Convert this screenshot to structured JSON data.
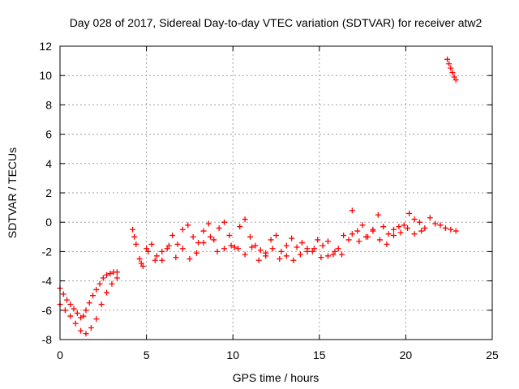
{
  "chart_data": {
    "type": "scatter",
    "title": "Day 028 of 2017, Sidereal Day-to-day VTEC variation (SDTVAR) for receiver atw2",
    "xlabel": "GPS time / hours",
    "ylabel": "SDTVAR / TECUs",
    "xlim": [
      0,
      25
    ],
    "ylim": [
      -8,
      12
    ],
    "xticks": [
      0,
      5,
      10,
      15,
      20,
      25
    ],
    "yticks": [
      -8,
      -6,
      -4,
      -2,
      0,
      2,
      4,
      6,
      8,
      10,
      12
    ],
    "grid": true,
    "marker": "+",
    "color": "#ff0000",
    "series": [
      {
        "name": "SDTVAR",
        "x": [
          0.0,
          0.2,
          0.4,
          0.6,
          0.8,
          1.0,
          1.2,
          1.35,
          1.5,
          1.7,
          1.9,
          2.1,
          2.3,
          2.5,
          2.7,
          2.9,
          3.1,
          3.3,
          0.0,
          0.3,
          0.6,
          0.9,
          1.2,
          1.5,
          1.8,
          2.1,
          2.4,
          2.7,
          3.0,
          3.3,
          4.2,
          4.4,
          4.6,
          4.8,
          5.0,
          5.3,
          5.6,
          5.9,
          6.2,
          6.5,
          6.8,
          7.1,
          7.4,
          7.7,
          8.0,
          8.3,
          8.6,
          8.9,
          9.2,
          9.5,
          9.8,
          10.1,
          10.4,
          10.7,
          11.0,
          11.3,
          11.6,
          11.9,
          12.2,
          12.5,
          12.8,
          13.1,
          13.4,
          13.7,
          14.0,
          14.3,
          14.6,
          14.9,
          15.2,
          15.5,
          15.8,
          16.1,
          16.4,
          16.7,
          4.3,
          4.7,
          5.1,
          5.5,
          5.9,
          6.3,
          6.7,
          7.1,
          7.5,
          7.9,
          8.3,
          8.7,
          9.1,
          9.5,
          9.9,
          10.3,
          10.7,
          11.1,
          11.5,
          11.9,
          12.3,
          12.7,
          13.1,
          13.5,
          13.9,
          14.3,
          14.7,
          15.1,
          15.5,
          15.9,
          16.3,
          16.9,
          17.2,
          17.5,
          17.8,
          18.1,
          18.4,
          18.7,
          19.0,
          19.3,
          19.6,
          19.9,
          20.2,
          20.5,
          20.8,
          21.1,
          21.4,
          21.7,
          22.0,
          22.3,
          22.6,
          22.9,
          16.9,
          17.3,
          17.7,
          18.1,
          18.5,
          18.9,
          19.3,
          19.7,
          20.1,
          20.5,
          20.9,
          22.4,
          22.5,
          22.6,
          22.7,
          22.8,
          22.9
        ],
        "y": [
          -4.5,
          -4.9,
          -5.3,
          -5.6,
          -5.9,
          -6.2,
          -6.5,
          -6.4,
          -6.0,
          -5.5,
          -5.0,
          -4.6,
          -4.2,
          -3.8,
          -3.6,
          -3.5,
          -3.4,
          -3.4,
          -5.6,
          -6.0,
          -6.4,
          -6.9,
          -7.4,
          -7.6,
          -7.2,
          -6.6,
          -5.6,
          -4.8,
          -4.2,
          -3.8,
          -0.5,
          -1.5,
          -2.5,
          -3.0,
          -1.8,
          -1.5,
          -2.3,
          -2.6,
          -1.8,
          -0.9,
          -1.5,
          -0.5,
          -0.2,
          -1.0,
          -1.4,
          -0.6,
          -0.1,
          -1.2,
          -0.4,
          0.0,
          -0.9,
          -1.7,
          -0.3,
          0.2,
          -1.0,
          -1.6,
          -1.9,
          -2.1,
          -1.2,
          -0.9,
          -2.0,
          -1.6,
          -1.1,
          -1.7,
          -1.4,
          -1.8,
          -2.0,
          -1.2,
          -1.6,
          -1.3,
          -2.2,
          -1.8,
          -0.9,
          -1.2,
          -1.0,
          -2.8,
          -2.0,
          -2.6,
          -2.0,
          -1.6,
          -2.4,
          -1.8,
          -2.5,
          -2.1,
          -1.4,
          -1.0,
          -2.0,
          -1.8,
          -1.6,
          -1.8,
          -2.2,
          -1.7,
          -2.6,
          -2.3,
          -1.8,
          -2.5,
          -2.3,
          -2.6,
          -2.2,
          -2.0,
          -1.8,
          -2.4,
          -2.3,
          -2.0,
          -2.2,
          0.8,
          -0.6,
          -0.2,
          -1.0,
          -0.5,
          0.5,
          -0.3,
          -0.8,
          -0.5,
          -0.3,
          -0.2,
          0.6,
          0.2,
          0.0,
          -0.4,
          0.3,
          -0.1,
          -0.2,
          -0.4,
          -0.5,
          -0.6,
          -0.8,
          -1.3,
          -1.0,
          -0.6,
          -1.2,
          -1.5,
          -0.9,
          -0.7,
          -0.4,
          -0.8,
          -0.6,
          11.1,
          10.8,
          10.5,
          10.2,
          9.9,
          9.7
        ]
      }
    ]
  }
}
